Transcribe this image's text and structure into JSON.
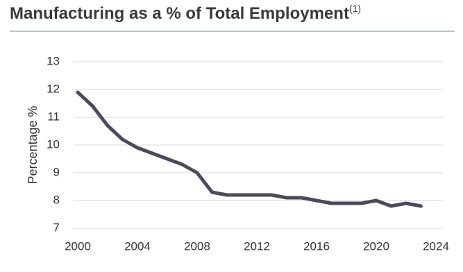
{
  "chart_data": {
    "type": "line",
    "title": "Manufacturing as a % of Total Employment",
    "title_superscript": "(1)",
    "y_label": "Percentage %",
    "x": [
      2000,
      2001,
      2002,
      2003,
      2004,
      2005,
      2006,
      2007,
      2008,
      2009,
      2010,
      2011,
      2012,
      2013,
      2014,
      2015,
      2016,
      2017,
      2018,
      2019,
      2020,
      2021,
      2022,
      2023
    ],
    "series": [
      {
        "color": "#4a4a5c",
        "values": [
          11.9,
          11.4,
          10.7,
          10.2,
          9.9,
          9.7,
          9.5,
          9.3,
          9.0,
          8.3,
          8.2,
          8.2,
          8.2,
          8.2,
          8.1,
          8.1,
          8.0,
          7.9,
          7.9,
          7.9,
          8.0,
          7.8,
          7.9,
          7.8
        ]
      }
    ],
    "xlim": [
      2000,
      2024
    ],
    "xticks": [
      2000,
      2004,
      2008,
      2012,
      2016,
      2020,
      2024
    ],
    "ylim": [
      7,
      13
    ],
    "yticks": [
      7,
      8,
      9,
      10,
      11,
      12,
      13
    ],
    "grid": true
  }
}
